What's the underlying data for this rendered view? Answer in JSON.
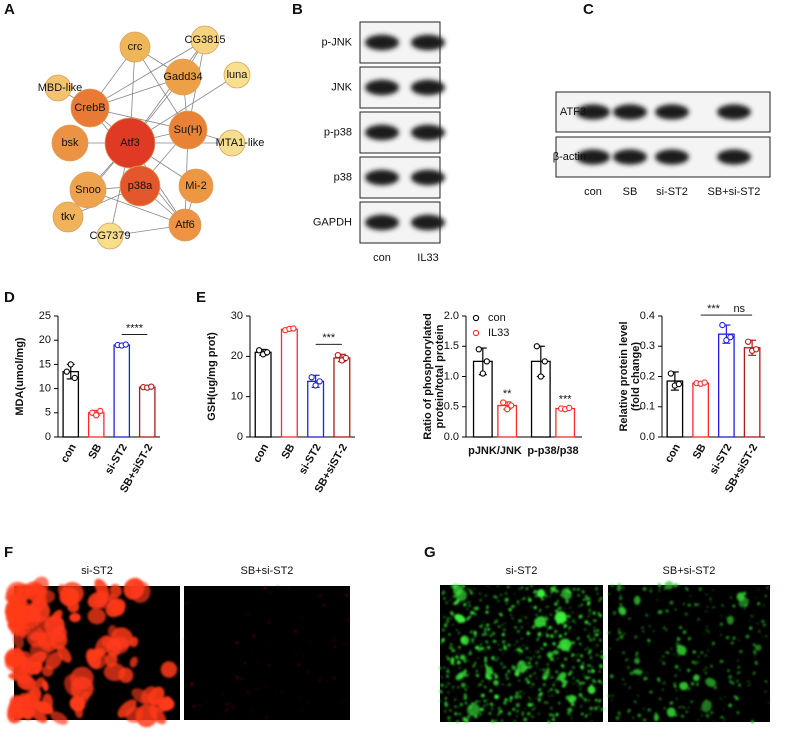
{
  "panel_labels": [
    "A",
    "B",
    "C",
    "D",
    "E",
    "F",
    "G"
  ],
  "network": {
    "nodes": [
      {
        "label": "Atf3",
        "color": "#e03a25"
      },
      {
        "label": "p38a",
        "color": "#e4562b"
      },
      {
        "label": "CrebB",
        "color": "#e97a35"
      },
      {
        "label": "Su(H)",
        "color": "#ea8236"
      },
      {
        "label": "Gadd34",
        "color": "#eda048"
      },
      {
        "label": "crc",
        "color": "#efb659"
      },
      {
        "label": "CG3815",
        "color": "#f6d47f"
      },
      {
        "label": "luna",
        "color": "#f8e08e"
      },
      {
        "label": "MBD-like",
        "color": "#f3c470"
      },
      {
        "label": "bsk",
        "color": "#ec9343"
      },
      {
        "label": "MTA1-like",
        "color": "#f6de90"
      },
      {
        "label": "Snoo",
        "color": "#eea24d"
      },
      {
        "label": "Mi-2",
        "color": "#ee9742"
      },
      {
        "label": "tkv",
        "color": "#f0b25a"
      },
      {
        "label": "CG7379",
        "color": "#f8dd8b"
      },
      {
        "label": "Atf6",
        "color": "#ed9343"
      }
    ]
  },
  "blot_B": {
    "rows": [
      "p-JNK",
      "JNK",
      "p-p38",
      "p38",
      "GAPDH"
    ],
    "columns": [
      "con",
      "IL33"
    ]
  },
  "blot_C": {
    "rows": [
      "ATF3",
      "β-actin"
    ],
    "columns": [
      "con",
      "SB",
      "si-ST2",
      "SB+si-ST2"
    ]
  },
  "chart_data": [
    {
      "type": "bar",
      "ylabel": [
        "MDA(umol/mg)"
      ],
      "categories": [
        "con",
        "SB",
        "si-ST2",
        "SB+siST-2"
      ],
      "values": [
        13.5,
        5,
        19,
        10.3
      ],
      "errors": [
        1.5,
        0.5,
        0.1,
        0.2
      ],
      "points": [
        [
          13.5,
          15,
          12.2
        ],
        [
          5,
          4.5,
          5.4
        ],
        [
          19,
          18.9,
          19.1
        ],
        [
          10.3,
          10.2,
          10.4
        ]
      ],
      "colors": [
        "#000000",
        "#ff2a2a",
        "#2020e0",
        "#b01818"
      ],
      "ylim": [
        0,
        25
      ],
      "yticks": [
        0,
        5,
        10,
        15,
        20,
        25
      ],
      "annotations": [
        {
          "text": "****",
          "between": [
            2,
            3
          ]
        }
      ]
    },
    {
      "type": "bar",
      "ylabel": [
        "GSH(ug/mg prot)"
      ],
      "categories": [
        "con",
        "SB",
        "si-ST2",
        "SB+siST-2"
      ],
      "values": [
        21,
        26.7,
        13.8,
        19.6
      ],
      "errors": [
        0.7,
        0.3,
        1.5,
        0.9
      ],
      "points": [
        [
          21.5,
          20.5,
          21
        ],
        [
          26.5,
          26.8,
          26.9
        ],
        [
          14.8,
          12.8,
          13.8
        ],
        [
          20.3,
          19,
          19.6
        ]
      ],
      "colors": [
        "#000000",
        "#ff2a2a",
        "#2020e0",
        "#b01818"
      ],
      "ylim": [
        0,
        30
      ],
      "yticks": [
        0,
        10,
        20,
        30
      ],
      "annotations": [
        {
          "text": "***",
          "between": [
            2,
            3
          ]
        }
      ]
    },
    {
      "type": "bar",
      "ylabel": [
        "Ratio of phosphorylated",
        "protein/total protein"
      ],
      "categories": [
        "pJNK/JNK",
        "p-p38/p38"
      ],
      "series": [
        {
          "name": "con",
          "color": "#000000",
          "values": [
            1.25,
            1.25
          ],
          "errors": [
            0.22,
            0.25
          ],
          "points": [
            [
              1.45,
              1.05,
              1.25
            ],
            [
              1.5,
              1.0,
              1.25
            ]
          ],
          "labels": [
            null,
            null
          ]
        },
        {
          "name": "IL33",
          "color": "#ff2a2a",
          "values": [
            0.52,
            0.47
          ],
          "errors": [
            0.06,
            0.02
          ],
          "points": [
            [
              0.57,
              0.46,
              0.52
            ],
            [
              0.47,
              0.46,
              0.48
            ]
          ],
          "labels": [
            "**",
            "***"
          ]
        }
      ],
      "legend": "top-left",
      "ylim": [
        0,
        2
      ],
      "yticks": [
        {
          "value": 0,
          "label": "0.0"
        },
        0.5,
        {
          "value": 1,
          "label": "1.0"
        },
        1.5,
        {
          "value": 2,
          "label": "2.0"
        }
      ]
    },
    {
      "type": "bar",
      "ylabel": [
        "Relative protein level",
        "(fold change)"
      ],
      "categories": [
        "con",
        "SB",
        "si-ST2",
        "SB+siST-2"
      ],
      "values": [
        0.185,
        0.178,
        0.34,
        0.295
      ],
      "errors": [
        0.03,
        0.003,
        0.03,
        0.025
      ],
      "points": [
        [
          0.21,
          0.17,
          0.175
        ],
        [
          0.178,
          0.176,
          0.18
        ],
        [
          0.37,
          0.32,
          0.33
        ],
        [
          0.315,
          0.285,
          0.29
        ]
      ],
      "colors": [
        "#000000",
        "#ff2a2a",
        "#2020e0",
        "#b01818"
      ],
      "ylim": [
        0,
        0.4
      ],
      "yticks": [
        {
          "value": 0,
          "label": "0.0"
        },
        0.1,
        0.2,
        0.3,
        0.4
      ],
      "annotations": [
        {
          "text": "***",
          "between": [
            1,
            2
          ]
        },
        {
          "text": "ns",
          "between": [
            2,
            3
          ]
        }
      ]
    }
  ],
  "images_F": {
    "labels": [
      "si-ST2",
      "SB+si-ST2"
    ]
  },
  "images_G": {
    "labels": [
      "si-ST2",
      "SB+si-ST2"
    ]
  }
}
